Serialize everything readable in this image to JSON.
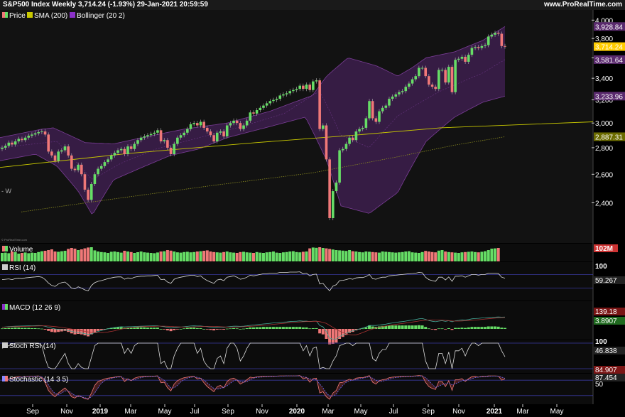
{
  "header": {
    "title": "S&P500 Index Weekly 3,714.24 (-1.93%) 29-Jan-2021 20:59:59",
    "site": "www.ProRealTime.com"
  },
  "colors": {
    "up": "#66dd66",
    "down": "#f07878",
    "sma": "#c8c800",
    "band": "#5a2a6e",
    "bg": "#000000",
    "panel": "#101010"
  },
  "legend": {
    "price": "Price",
    "sma": "SMA (200)",
    "bollinger": "Bollinger (20 2)",
    "volume": "Volume",
    "rsi": "RSI (14)",
    "macd": "MACD (12 26 9)",
    "stochrsi": "Stoch RSI (14)",
    "stochastic": "Stochastic (14 3 5)"
  },
  "side_labels": {
    "price_left": "- W",
    "watermark": "© ProRealTime.com",
    "vol": "102M",
    "rsi_top": "100",
    "rsi_val": "59.267",
    "macd_a": "139.18",
    "macd_b": "3.8907",
    "srsi_top": "100",
    "srsi_val": "46.838",
    "stoch_a": "84.907",
    "stoch_b": "87.454",
    "stoch_mid": "50"
  },
  "chart_data": {
    "type": "candlestick",
    "title": "S&P500 Index Weekly",
    "x_axis_labels": [
      "Sep",
      "Nov",
      "2019",
      "Mar",
      "May",
      "Jul",
      "Sep",
      "Nov",
      "2020",
      "Mar",
      "May",
      "Jul",
      "Sep",
      "Nov",
      "2021",
      "Mar",
      "May"
    ],
    "bold_labels": [
      "2019",
      "2020",
      "2021"
    ],
    "y_ticks": [
      2400,
      2600,
      2800,
      3000,
      3200,
      3400,
      3600,
      3800,
      4000
    ],
    "y_tick_labels": [
      "2,400",
      "2,600",
      "2,800",
      "3,000",
      "3,200",
      "3,400",
      "3,600",
      "3,800",
      "4,000"
    ],
    "ylim": [
      2180,
      4050
    ],
    "y_scale": "log",
    "price_markers": [
      {
        "value": 3928.84,
        "label": "3,928.84",
        "color": "#5a2a6e"
      },
      {
        "value": 3714.24,
        "label": "3,714.24",
        "color": "#ffcc00"
      },
      {
        "value": 3581.64,
        "label": "3,581.64",
        "color": "#5a2a6e"
      },
      {
        "value": 3233.96,
        "label": "3,233.96",
        "color": "#5a2a6e"
      },
      {
        "value": 2887.31,
        "label": "2,887.31",
        "color": "#6b6b00"
      }
    ],
    "closes": [
      2800,
      2815,
      2840,
      2825,
      2850,
      2870,
      2860,
      2880,
      2895,
      2905,
      2915,
      2925,
      2930,
      2905,
      2770,
      2740,
      2700,
      2770,
      2780,
      2810,
      2740,
      2640,
      2630,
      2670,
      2600,
      2490,
      2420,
      2530,
      2600,
      2640,
      2660,
      2690,
      2710,
      2740,
      2760,
      2780,
      2790,
      2750,
      2810,
      2790,
      2830,
      2860,
      2880,
      2890,
      2900,
      2910,
      2920,
      2940,
      2850,
      2860,
      2800,
      2750,
      2830,
      2880,
      2900,
      2920,
      2950,
      2990,
      3000,
      2980,
      3010,
      2960,
      2930,
      2900,
      2850,
      2920,
      2930,
      2890,
      2980,
      3000,
      3020,
      3000,
      2950,
      2980,
      3020,
      3090,
      3080,
      3110,
      3130,
      3150,
      3170,
      3190,
      3200,
      3210,
      3240,
      3250,
      3260,
      3280,
      3290,
      3300,
      3330,
      3300,
      3340,
      3290,
      3370,
      3380,
      2950,
      2980,
      2710,
      2300,
      2480,
      2540,
      2780,
      2790,
      2830,
      2880,
      2860,
      2930,
      2950,
      2960,
      3040,
      3190,
      3040,
      3010,
      3100,
      3130,
      3150,
      3210,
      3230,
      3250,
      3270,
      3280,
      3320,
      3350,
      3390,
      3420,
      3500,
      3500,
      3420,
      3340,
      3320,
      3300,
      3480,
      3480,
      3360,
      3510,
      3270,
      3580,
      3590,
      3610,
      3560,
      3630,
      3700,
      3710,
      3700,
      3720,
      3730,
      3820,
      3840,
      3860,
      3850,
      3720,
      3714.24
    ],
    "sma200": [
      [
        0,
        2960
      ],
      [
        100,
        2960
      ],
      [
        200,
        2960
      ],
      [
        460,
        2960
      ],
      [
        530,
        2960
      ],
      [
        620,
        2960
      ],
      [
        711,
        2960
      ]
    ],
    "sma_line": [
      [
        0,
        2650
      ],
      [
        180,
        2755
      ],
      [
        360,
        2840
      ],
      [
        500,
        2900
      ],
      [
        620,
        2960
      ],
      [
        835,
        3010
      ]
    ],
    "sma_dotted": [
      [
        30,
        2340
      ],
      [
        150,
        2420
      ],
      [
        300,
        2520
      ],
      [
        440,
        2610
      ],
      [
        560,
        2730
      ],
      [
        640,
        2820
      ],
      [
        711,
        2887
      ]
    ],
    "boll_upper_pts": [
      [
        0,
        2880
      ],
      [
        60,
        2950
      ],
      [
        75,
        2960
      ],
      [
        120,
        2840
      ],
      [
        160,
        2830
      ],
      [
        200,
        2880
      ],
      [
        260,
        2950
      ],
      [
        320,
        3000
      ],
      [
        380,
        3100
      ],
      [
        440,
        3240
      ],
      [
        460,
        3420
      ],
      [
        490,
        3600
      ],
      [
        530,
        3520
      ],
      [
        560,
        3420
      ],
      [
        580,
        3500
      ],
      [
        600,
        3600
      ],
      [
        640,
        3660
      ],
      [
        680,
        3780
      ],
      [
        711,
        3928
      ]
    ],
    "boll_lower_pts": [
      [
        0,
        2700
      ],
      [
        50,
        2750
      ],
      [
        80,
        2660
      ],
      [
        110,
        2480
      ],
      [
        130,
        2320
      ],
      [
        160,
        2560
      ],
      [
        200,
        2650
      ],
      [
        240,
        2740
      ],
      [
        280,
        2790
      ],
      [
        320,
        2880
      ],
      [
        380,
        2970
      ],
      [
        430,
        3050
      ],
      [
        460,
        2700
      ],
      [
        480,
        2380
      ],
      [
        520,
        2330
      ],
      [
        560,
        2470
      ],
      [
        600,
        2850
      ],
      [
        640,
        3050
      ],
      [
        680,
        3180
      ],
      [
        711,
        3234
      ]
    ],
    "boll_mid_pts": [
      [
        0,
        2800
      ],
      [
        80,
        2850
      ],
      [
        130,
        2560
      ],
      [
        170,
        2680
      ],
      [
        220,
        2790
      ],
      [
        280,
        2880
      ],
      [
        340,
        2970
      ],
      [
        400,
        3080
      ],
      [
        450,
        3280
      ],
      [
        480,
        2900
      ],
      [
        520,
        2800
      ],
      [
        560,
        3060
      ],
      [
        620,
        3280
      ],
      [
        680,
        3450
      ],
      [
        711,
        3582
      ]
    ],
    "vol_values": [
      60,
      62,
      58,
      70,
      65,
      55,
      60,
      63,
      58,
      62,
      60,
      66,
      72,
      75,
      80,
      85,
      70,
      68,
      72,
      75,
      88,
      95,
      90,
      80,
      85,
      92,
      98,
      100,
      78,
      70,
      66,
      64,
      60,
      68,
      70,
      66,
      62,
      75,
      70,
      66,
      60,
      65,
      70,
      64,
      62,
      60,
      58,
      63,
      70,
      72,
      80,
      76,
      70,
      64,
      62,
      66,
      68,
      64,
      66,
      70,
      72,
      75,
      78,
      70,
      66,
      64,
      62,
      66,
      70,
      64,
      62,
      60,
      66,
      68,
      64,
      62,
      60,
      66,
      62,
      60,
      64,
      66,
      70,
      62,
      60,
      64,
      66,
      70,
      72,
      66,
      64,
      68,
      70,
      92,
      98,
      96,
      100,
      95,
      92,
      88,
      84,
      80,
      78,
      76,
      74,
      80,
      72,
      70,
      66,
      64,
      70,
      68,
      66,
      64,
      62,
      70,
      68,
      66,
      64,
      62,
      64,
      66,
      70,
      72,
      64,
      62,
      60,
      66,
      74,
      70,
      66,
      64,
      76,
      80,
      70,
      66,
      64,
      62,
      60,
      64,
      66,
      68,
      70,
      66,
      64,
      68,
      72,
      80,
      90,
      92,
      95
    ],
    "rsi_values": [
      55,
      56,
      57,
      55,
      58,
      59,
      58,
      60,
      61,
      62,
      63,
      64,
      62,
      55,
      45,
      38,
      35,
      42,
      46,
      48,
      40,
      30,
      28,
      34,
      30,
      25,
      22,
      38,
      46,
      50,
      52,
      55,
      58,
      60,
      62,
      63,
      63,
      56,
      60,
      58,
      62,
      64,
      65,
      65,
      66,
      66,
      67,
      68,
      55,
      56,
      48,
      44,
      56,
      60,
      62,
      64,
      66,
      68,
      68,
      64,
      66,
      58,
      52,
      48,
      44,
      54,
      56,
      52,
      62,
      64,
      66,
      62,
      56,
      58,
      62,
      68,
      66,
      68,
      70,
      72,
      72,
      74,
      74,
      74,
      76,
      76,
      76,
      77,
      77,
      77,
      78,
      72,
      74,
      66,
      70,
      71,
      42,
      44,
      32,
      22,
      36,
      40,
      52,
      53,
      55,
      58,
      56,
      60,
      61,
      61,
      64,
      70,
      58,
      56,
      60,
      62,
      62,
      66,
      67,
      68,
      69,
      70,
      71,
      72,
      73,
      74,
      76,
      75,
      62,
      55,
      52,
      50,
      62,
      62,
      54,
      63,
      50,
      65,
      65,
      66,
      62,
      66,
      70,
      70,
      68,
      70,
      70,
      74,
      74,
      74,
      73,
      62,
      59.27
    ],
    "macd_hist": [
      2,
      3,
      4,
      4,
      5,
      5,
      4,
      4,
      4,
      3,
      3,
      2,
      1,
      -3,
      -8,
      -12,
      -14,
      -12,
      -10,
      -8,
      -12,
      -18,
      -22,
      -20,
      -22,
      -26,
      -30,
      -22,
      -14,
      -8,
      -4,
      -1,
      2,
      4,
      6,
      7,
      7,
      4,
      5,
      4,
      5,
      6,
      6,
      6,
      5,
      5,
      5,
      5,
      0,
      -2,
      -6,
      -9,
      -5,
      -2,
      0,
      2,
      4,
      5,
      5,
      3,
      3,
      0,
      -2,
      -4,
      -6,
      -3,
      -2,
      -3,
      1,
      2,
      3,
      2,
      0,
      1,
      3,
      6,
      6,
      7,
      7,
      8,
      8,
      8,
      8,
      8,
      8,
      8,
      8,
      8,
      8,
      8,
      8,
      6,
      6,
      2,
      3,
      3,
      -18,
      -22,
      -40,
      -62,
      -60,
      -55,
      -40,
      -32,
      -24,
      -16,
      -12,
      -6,
      -2,
      2,
      6,
      14,
      10,
      8,
      10,
      12,
      12,
      14,
      14,
      14,
      14,
      14,
      14,
      14,
      14,
      14,
      15,
      14,
      8,
      2,
      -2,
      -4,
      2,
      2,
      -2,
      3,
      -4,
      4,
      4,
      5,
      4,
      6,
      8,
      8,
      8,
      8,
      8,
      10,
      10,
      10,
      9,
      5,
      4
    ],
    "macd_line": [
      20,
      24,
      28,
      30,
      32,
      33,
      34,
      35,
      36,
      37,
      38,
      39,
      38,
      30,
      18,
      8,
      0,
      -6,
      -10,
      -12,
      -18,
      -28,
      -38,
      -42,
      -48,
      -56,
      -64,
      -58,
      -44,
      -30,
      -18,
      -8,
      2,
      10,
      16,
      22,
      26,
      24,
      26,
      26,
      28,
      30,
      32,
      33,
      34,
      35,
      36,
      37,
      30,
      26,
      18,
      10,
      14,
      18,
      22,
      26,
      30,
      34,
      36,
      34,
      34,
      30,
      26,
      20,
      14,
      18,
      20,
      18,
      24,
      28,
      32,
      32,
      30,
      32,
      36,
      42,
      46,
      50,
      54,
      58,
      62,
      66,
      70,
      72,
      76,
      80,
      82,
      86,
      88,
      90,
      94,
      90,
      92,
      86,
      90,
      92,
      40,
      24,
      -30,
      -110,
      -120,
      -118,
      -90,
      -70,
      -50,
      -34,
      -22,
      -10,
      0,
      10,
      22,
      40,
      40,
      40,
      46,
      52,
      56,
      64,
      70,
      76,
      82,
      86,
      92,
      98,
      104,
      110,
      118,
      122,
      112,
      98,
      90,
      84,
      92,
      96,
      88,
      96,
      84,
      96,
      100,
      106,
      104,
      110,
      118,
      122,
      124,
      128,
      130,
      134,
      136,
      138,
      140,
      138,
      139
    ],
    "srsi_values": [
      80,
      85,
      90,
      95,
      100,
      100,
      100,
      100,
      100,
      100,
      100,
      100,
      90,
      40,
      5,
      0,
      0,
      20,
      40,
      60,
      20,
      0,
      0,
      20,
      5,
      0,
      0,
      45,
      90,
      100,
      100,
      100,
      100,
      100,
      100,
      100,
      100,
      60,
      80,
      60,
      90,
      100,
      100,
      100,
      100,
      100,
      100,
      100,
      20,
      30,
      0,
      0,
      50,
      80,
      100,
      100,
      100,
      100,
      100,
      60,
      80,
      30,
      10,
      0,
      0,
      40,
      50,
      20,
      80,
      100,
      100,
      80,
      30,
      50,
      80,
      100,
      100,
      100,
      100,
      100,
      100,
      100,
      100,
      100,
      100,
      100,
      100,
      100,
      100,
      100,
      100,
      70,
      90,
      50,
      80,
      85,
      0,
      5,
      0,
      0,
      30,
      50,
      90,
      95,
      100,
      100,
      90,
      100,
      100,
      100,
      100,
      100,
      40,
      30,
      60,
      75,
      75,
      100,
      100,
      100,
      100,
      100,
      100,
      100,
      100,
      100,
      100,
      100,
      30,
      0,
      0,
      0,
      60,
      60,
      20,
      65,
      0,
      70,
      70,
      80,
      50,
      80,
      100,
      100,
      90,
      100,
      100,
      100,
      100,
      100,
      100,
      70,
      46.8
    ],
    "stoch_k": [
      80,
      82,
      85,
      88,
      92,
      94,
      92,
      94,
      95,
      96,
      96,
      97,
      90,
      70,
      40,
      25,
      15,
      30,
      40,
      50,
      35,
      15,
      10,
      20,
      15,
      8,
      5,
      30,
      60,
      75,
      80,
      85,
      88,
      90,
      92,
      94,
      94,
      75,
      85,
      78,
      88,
      92,
      94,
      95,
      95,
      96,
      96,
      97,
      70,
      72,
      50,
      38,
      65,
      78,
      85,
      90,
      92,
      94,
      95,
      85,
      88,
      70,
      55,
      45,
      35,
      55,
      60,
      50,
      75,
      85,
      88,
      80,
      65,
      72,
      82,
      92,
      90,
      93,
      94,
      95,
      95,
      96,
      96,
      96,
      97,
      97,
      97,
      97,
      97,
      97,
      98,
      85,
      90,
      72,
      86,
      88,
      30,
      35,
      15,
      5,
      30,
      40,
      70,
      72,
      78,
      84,
      80,
      88,
      90,
      90,
      94,
      98,
      72,
      65,
      78,
      82,
      84,
      90,
      92,
      93,
      94,
      95,
      95,
      96,
      96,
      97,
      98,
      97,
      72,
      55,
      48,
      44,
      75,
      75,
      55,
      78,
      40,
      82,
      82,
      86,
      75,
      86,
      94,
      95,
      92,
      95,
      95,
      97,
      97,
      97,
      96,
      80,
      84.9
    ],
    "stoch_d": [
      78,
      80,
      82,
      85,
      88,
      91,
      92,
      93,
      94,
      95,
      95,
      96,
      93,
      82,
      62,
      42,
      28,
      24,
      30,
      38,
      38,
      30,
      20,
      15,
      15,
      12,
      8,
      15,
      30,
      50,
      68,
      78,
      83,
      87,
      90,
      92,
      93,
      87,
      84,
      80,
      82,
      86,
      90,
      93,
      94,
      95,
      95,
      96,
      87,
      80,
      65,
      50,
      50,
      60,
      73,
      82,
      88,
      91,
      93,
      91,
      88,
      80,
      70,
      58,
      48,
      45,
      48,
      52,
      58,
      68,
      78,
      81,
      76,
      72,
      74,
      82,
      88,
      91,
      92,
      93,
      94,
      95,
      95,
      96,
      96,
      96,
      97,
      97,
      97,
      97,
      97,
      93,
      91,
      85,
      83,
      82,
      65,
      50,
      30,
      18,
      18,
      25,
      45,
      60,
      72,
      78,
      80,
      82,
      86,
      88,
      90,
      94,
      88,
      80,
      74,
      76,
      80,
      84,
      88,
      90,
      92,
      93,
      94,
      95,
      95,
      96,
      96,
      97,
      90,
      78,
      64,
      52,
      56,
      63,
      66,
      70,
      62,
      66,
      72,
      78,
      80,
      82,
      86,
      90,
      92,
      93,
      94,
      95,
      96,
      96,
      96,
      92,
      87.5
    ]
  }
}
